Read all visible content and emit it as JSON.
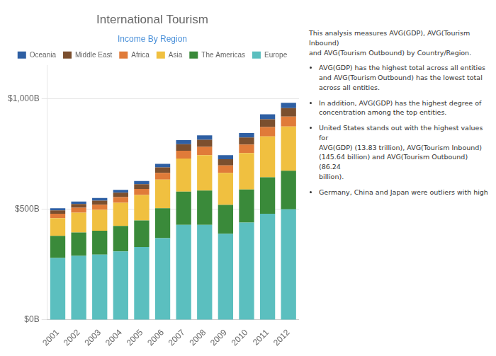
{
  "chart_data": {
    "type": "bar",
    "title": "International Tourism",
    "subtitle": "Income By Region",
    "categories": [
      "2001",
      "2002",
      "2003",
      "2004",
      "2005",
      "2006",
      "2007",
      "2008",
      "2009",
      "2010",
      "2011",
      "2012"
    ],
    "series": [
      {
        "name": "Europe",
        "color": "#5bbfbf",
        "values": [
          280,
          290,
          295,
          310,
          330,
          370,
          430,
          430,
          390,
          440,
          480,
          500
        ]
      },
      {
        "name": "The Americas",
        "color": "#3a8a3a",
        "values": [
          100,
          105,
          108,
          115,
          120,
          135,
          150,
          155,
          130,
          150,
          165,
          175
        ]
      },
      {
        "name": "Asia",
        "color": "#f0c040",
        "values": [
          80,
          90,
          95,
          105,
          115,
          130,
          150,
          160,
          145,
          165,
          185,
          200
        ]
      },
      {
        "name": "Africa",
        "color": "#e07b39",
        "values": [
          20,
          22,
          23,
          25,
          27,
          30,
          35,
          38,
          34,
          38,
          42,
          45
        ]
      },
      {
        "name": "Middle East",
        "color": "#7b4f2e",
        "values": [
          15,
          17,
          18,
          20,
          22,
          25,
          30,
          32,
          28,
          32,
          36,
          38
        ]
      },
      {
        "name": "Oceania",
        "color": "#2e5fa3",
        "values": [
          10,
          11,
          12,
          13,
          14,
          16,
          18,
          20,
          18,
          20,
          22,
          24
        ]
      }
    ],
    "stacked": true,
    "ylim": [
      0,
      1150
    ],
    "yticks": [
      {
        "value": 0,
        "label": "$0B"
      },
      {
        "value": 500,
        "label": "$500B"
      },
      {
        "value": 1000,
        "label": "$1,000B"
      }
    ],
    "grid": true,
    "legend": "top",
    "annotations": [
      "This analysis measures AVG(GDP), AVG(Tourism Inbound)\nand AVG(Tourism Outbound) by Country/Region.",
      "AVG(GDP) has the highest total across all entities\nand AVG(Tourism Outbound) has the lowest total\nacross all entities.",
      "In addition, AVG(GDP) has the highest degree of\nconcentration among the top entities.",
      "United States stands out with the highest values for\nAVG(GDP) (13.83 trillion), AVG(Tourism Inbound)\n(145.64 billion) and AVG(Tourism Outbound) (86.24\nbillion).",
      "Germany, China and Japan were outliers with high"
    ]
  }
}
